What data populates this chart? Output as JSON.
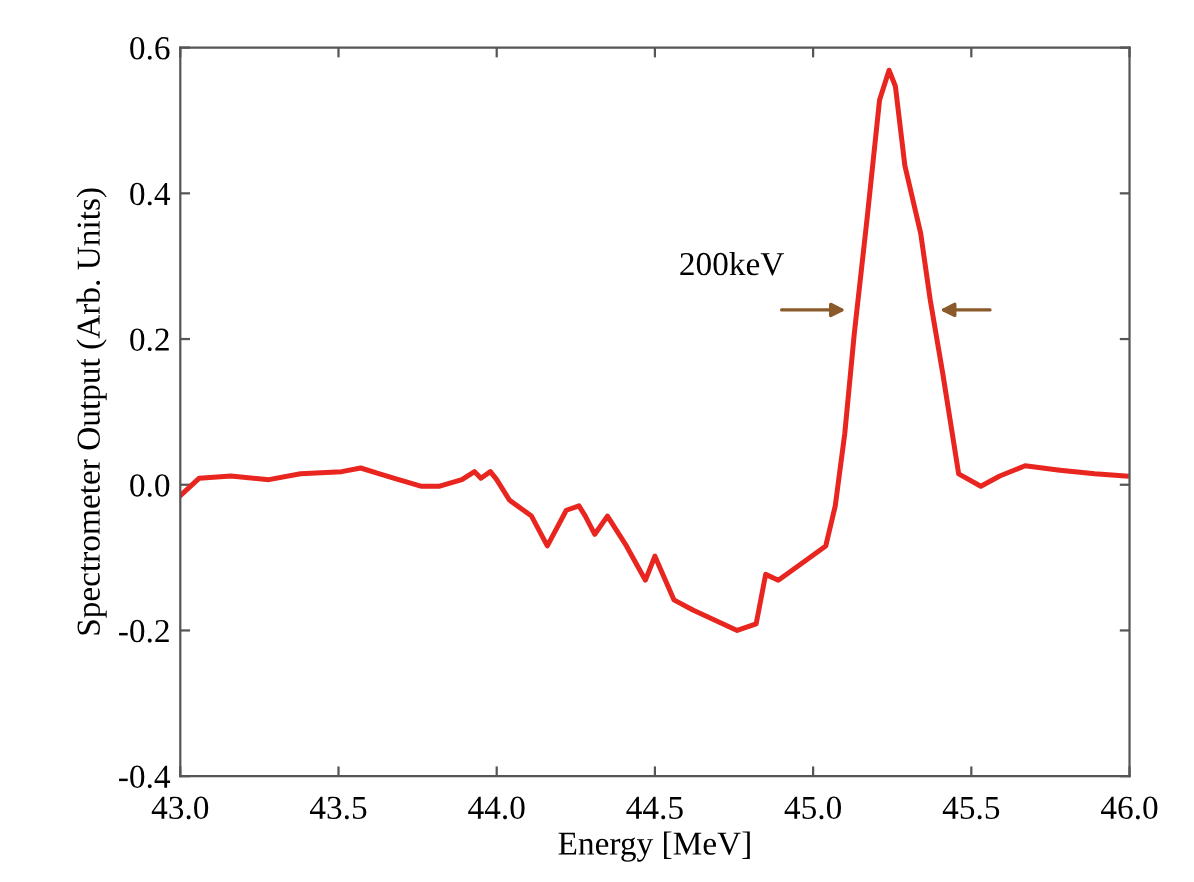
{
  "chart_data": {
    "type": "line",
    "xlabel": "Energy [MeV]",
    "ylabel": "Spectrometer Output (Arb. Units)",
    "xlim": [
      43,
      46
    ],
    "ylim": [
      -0.4,
      0.6
    ],
    "xticks": [
      {
        "value": 43,
        "label": "43.0"
      },
      43.5,
      {
        "value": 44,
        "label": "44.0"
      },
      44.5,
      {
        "value": 45,
        "label": "45.0"
      },
      45.5,
      {
        "value": 46,
        "label": "46.0"
      }
    ],
    "yticks": [
      {
        "value": -0.4,
        "label": "-0.4"
      },
      {
        "value": -0.2,
        "label": "-0.2"
      },
      {
        "value": 0,
        "label": "0.0"
      },
      0.2,
      0.4,
      0.6
    ],
    "grid": false,
    "marker": "none",
    "line_style": "solid",
    "annotations": [
      {
        "text": "200keV",
        "x": 45.12,
        "y": 0.24
      }
    ],
    "series": [
      {
        "color": "#e8251f",
        "x": [
          43.0,
          43.06,
          43.16,
          43.28,
          43.38,
          43.51,
          43.57,
          43.63,
          43.69,
          43.76,
          43.82,
          43.89,
          43.93,
          43.95,
          43.98,
          44.0,
          44.04,
          44.11,
          44.16,
          44.22,
          44.26,
          44.28,
          44.31,
          44.35,
          44.41,
          44.47,
          44.5,
          44.56,
          44.62,
          44.69,
          44.76,
          44.82,
          44.85,
          44.89,
          44.98,
          45.04,
          45.07,
          45.1,
          45.13,
          45.17,
          45.21,
          45.24,
          45.26,
          45.29,
          45.34,
          45.37,
          45.41,
          45.46,
          45.53,
          45.59,
          45.67,
          45.78,
          45.89,
          45.99
        ],
        "values": [
          -0.015,
          0.009,
          0.012,
          0.007,
          0.015,
          0.018,
          0.023,
          0.015,
          0.007,
          -0.002,
          -0.002,
          0.007,
          0.018,
          0.009,
          0.018,
          0.007,
          -0.021,
          -0.043,
          -0.084,
          -0.035,
          -0.029,
          -0.043,
          -0.068,
          -0.043,
          -0.084,
          -0.131,
          -0.098,
          -0.158,
          -0.172,
          -0.186,
          -0.2,
          -0.191,
          -0.123,
          -0.131,
          -0.103,
          -0.084,
          -0.029,
          0.07,
          0.207,
          0.363,
          0.528,
          0.569,
          0.547,
          0.438,
          0.345,
          0.254,
          0.152,
          0.015,
          -0.002,
          0.012,
          0.026,
          0.02,
          0.015,
          0.012
        ]
      }
    ]
  }
}
